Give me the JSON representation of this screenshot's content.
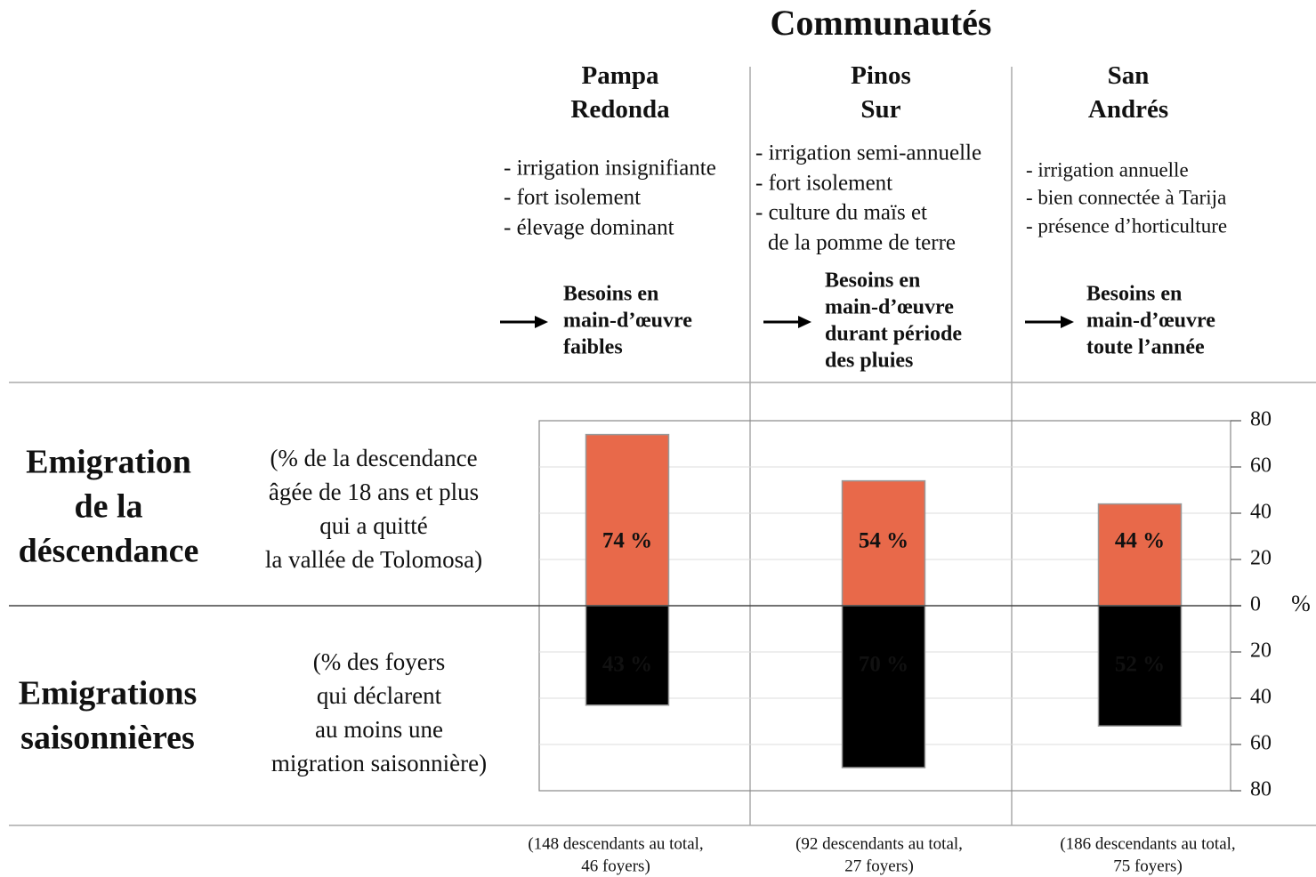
{
  "chart_data": {
    "type": "bar",
    "title": "Communautés",
    "categories": [
      "Pampa Redonda",
      "Pinos Sur",
      "San Andrés"
    ],
    "descriptions": [
      [
        "- irrigation insignifiante",
        "- fort isolement",
        "- élevage dominant"
      ],
      [
        "- irrigation semi-annuelle",
        "- fort isolement",
        "- culture du maïs et",
        "de la pomme de terre"
      ],
      [
        "- irrigation annuelle",
        "- bien connectée à Tarija",
        "- présence d’horticulture"
      ]
    ],
    "needs": [
      [
        "Besoins en",
        "main-d’œuvre",
        "faibles"
      ],
      [
        "Besoins en",
        "main-d’œuvre",
        "durant période",
        "des pluies"
      ],
      [
        "Besoins en",
        "main-d’œuvre",
        "toute l’année"
      ]
    ],
    "footnotes": [
      [
        "(148 descendants au total,",
        "46 foyers)"
      ],
      [
        "(92 descendants au total,",
        "27 foyers)"
      ],
      [
        "(186 descendants au total,",
        "75 foyers)"
      ]
    ],
    "series": [
      {
        "name": [
          "Emigration",
          "de la",
          "déscendance"
        ],
        "description": [
          "(% de la descendance",
          "âgée de 18 ans et plus",
          "qui a quitté",
          "la vallée de Tolomosa)"
        ],
        "color": "#e8694a",
        "values": [
          74,
          54,
          44
        ],
        "value_labels": [
          "74 %",
          "54 %",
          "44 %"
        ]
      },
      {
        "name": [
          "Emigrations",
          "saisonnières"
        ],
        "description": [
          "(% des foyers",
          "qui déclarent",
          "au moins une",
          "migration saisonnière)"
        ],
        "color": "#000000",
        "values": [
          -43,
          -70,
          -52
        ],
        "value_labels": [
          "43 %",
          "70 %",
          "52 %"
        ]
      }
    ],
    "ylabel": "%",
    "ylim": [
      -80,
      80
    ],
    "yticks": [
      {
        "value": -80,
        "label": "80"
      },
      {
        "value": -60,
        "label": "60"
      },
      {
        "value": -40,
        "label": "40"
      },
      {
        "value": -20,
        "label": "20"
      },
      0,
      20,
      40,
      60,
      80
    ],
    "grid": true
  }
}
